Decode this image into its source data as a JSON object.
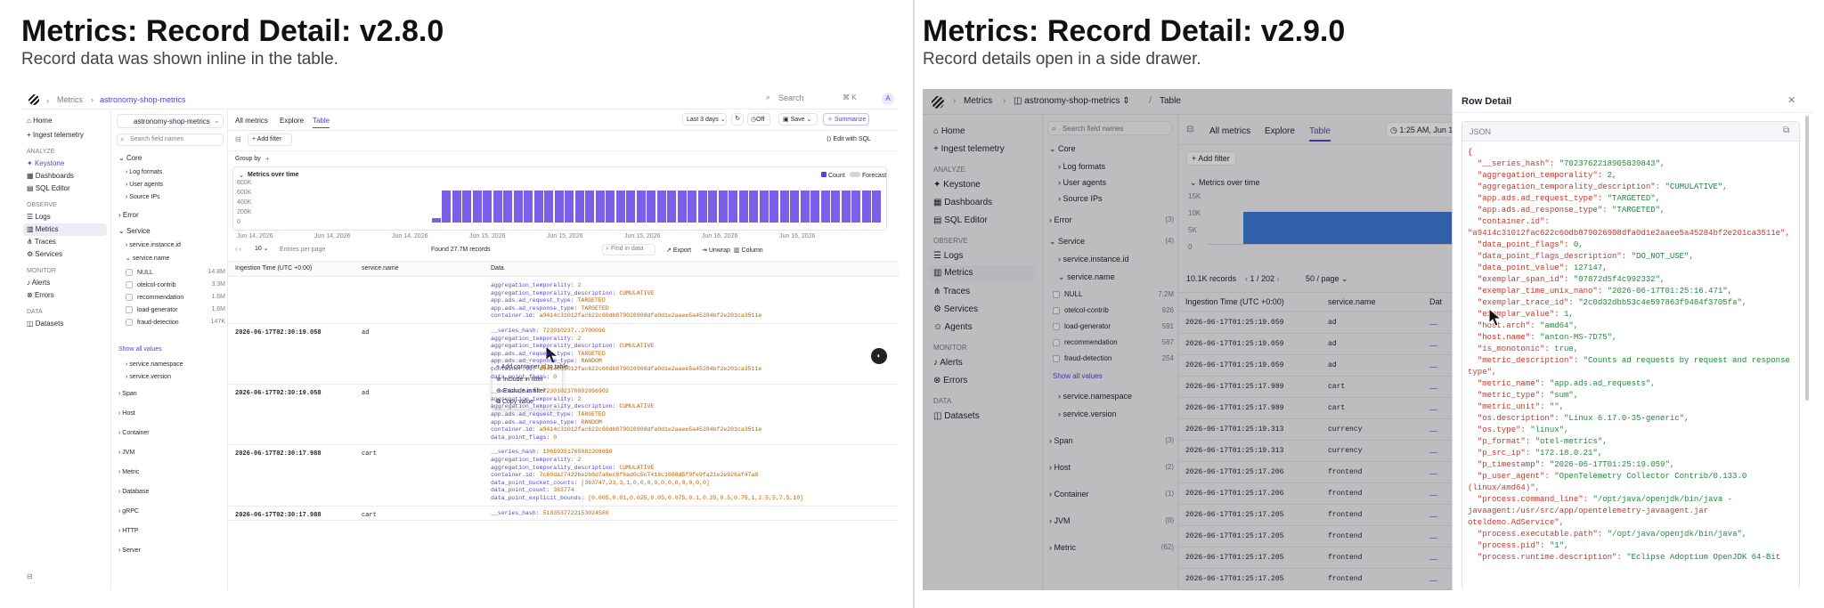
{
  "left": {
    "title": "Metrics: Record Detail: v2.8.0",
    "subtitle": "Record data was shown inline in the table.",
    "breadcrumb": [
      "Metrics",
      "astronomy-shop-metrics"
    ],
    "search": {
      "label": "Search",
      "shortcut": "⌘ K"
    },
    "avatar": "A",
    "nav": {
      "top": [
        "Home",
        "Ingest telemetry"
      ],
      "analyze_h": "ANALYZE",
      "analyze": [
        "Keystone",
        "Dashboards",
        "SQL Editor"
      ],
      "observe_h": "OBSERVE",
      "observe": [
        "Logs",
        "Metrics",
        "Traces",
        "Services"
      ],
      "monitor_h": "MONITOR",
      "monitor": [
        "Alerts",
        "Errors"
      ],
      "data_h": "DATA",
      "data": [
        "Datasets"
      ]
    },
    "dataset": "astronomy-shop-metrics",
    "field_search": "Search field names",
    "tabs": [
      "All metrics",
      "Explore",
      "Table"
    ],
    "toolbar": {
      "range": "Last 3 days",
      "off": "Off",
      "save": "Save",
      "summarize": "Summarize",
      "add_filter": "Add filter",
      "edit_sql": "Edit with SQL",
      "group_by": "Group by"
    },
    "fields": {
      "core": "Core",
      "core_items": [
        "Log formats",
        "User agents",
        "Source IPs"
      ],
      "error": "Error",
      "service": "Service",
      "service_items": [
        "service.instance.id",
        "service.name"
      ],
      "values": [
        {
          "name": "NULL",
          "count": "14.8M"
        },
        {
          "name": "otelcol-contrib",
          "count": "3.3M"
        },
        {
          "name": "recommendation",
          "count": "1.6M"
        },
        {
          "name": "load-generator",
          "count": "1.6M"
        },
        {
          "name": "fraud-detection",
          "count": "147K"
        }
      ],
      "show_all": "Show all values",
      "more": [
        "service.namespace",
        "service.version"
      ],
      "groups": [
        "Span",
        "Host",
        "Container",
        "JVM",
        "Metric",
        "Database",
        "gRPC",
        "HTTP",
        "Server"
      ]
    },
    "chart": {
      "title": "Metrics over time",
      "legend_count": "Count",
      "legend_forecast": "Forecast",
      "yticks": [
        "800K",
        "600K",
        "400K",
        "200K",
        "0"
      ],
      "xticks": [
        "Jun 14, 2026",
        "Jun 14, 2026",
        "Jun 14, 2026",
        "Jun 15, 2026",
        "Jun 15, 2026",
        "Jun 15, 2026",
        "Jun 16, 2026",
        "Jun 16, 2026"
      ]
    },
    "chart_data": {
      "type": "bar",
      "series": [
        {
          "name": "Count",
          "values": [
            100000,
            650000,
            650000,
            650000,
            650000,
            650000,
            650000,
            650000,
            650000,
            650000,
            650000,
            650000,
            650000,
            650000,
            650000,
            650000,
            650000,
            650000,
            650000,
            650000,
            650000,
            650000,
            650000,
            650000,
            650000,
            650000,
            650000,
            650000,
            650000,
            650000,
            650000,
            650000,
            650000,
            650000,
            650000,
            650000,
            650000,
            650000,
            650000,
            650000,
            650000,
            650000,
            650000,
            650000
          ]
        }
      ],
      "ylim": [
        0,
        800000
      ]
    },
    "pager": {
      "size": "10",
      "entries": "Entries per page",
      "found": "Found 27.7M records",
      "find": "Find in data",
      "export": "Export",
      "unwrap": "Unwrap",
      "column": "Column"
    },
    "cols": [
      "Ingestion Time (UTC +0:00)",
      "service.name",
      "Data"
    ],
    "rows": [
      {
        "time": "",
        "svc": "",
        "lines": [
          [
            "aggregation_temporality: ",
            "2"
          ],
          [
            "aggregation_temporality_description: ",
            "CUMULATIVE"
          ],
          [
            "app.ads.ad_request_type: ",
            "TARGETED"
          ],
          [
            "app.ads.ad_response_type: ",
            "TARGETED"
          ],
          [
            "container.id: ",
            "a9414c31012fac622c60db879026908dfa0d1e2aaee5a45284bf2e201ca3511e"
          ]
        ]
      },
      {
        "time": "2026-06-17T02:30:19.058",
        "svc": "ad",
        "lines": [
          [
            "__series_hash: ",
            "723010237..2700096"
          ],
          [
            "aggregation_temporality: ",
            "2"
          ],
          [
            "aggregation_temporality_description: ",
            "CUMULATIVE"
          ],
          [
            "app.ads.ad_request_type: ",
            "TARGETED"
          ],
          [
            "app.ads.ad_response_type: ",
            "RANDOM"
          ],
          [
            "container.id: ",
            "a9414c31012fac622c60db879026908dfa0d1e2aaee5a45284bf2e201ca3511e"
          ],
          [
            "data_point_flags: ",
            "0"
          ]
        ]
      },
      {
        "time": "2026-06-17T02:30:19.058",
        "svc": "ad",
        "lines": [
          [
            "__series_hash: ",
            "7230102370002096902"
          ],
          [
            "aggregation_temporality: ",
            "2"
          ],
          [
            "aggregation_temporality_description: ",
            "CUMULATIVE"
          ],
          [
            "app.ads.ad_request_type: ",
            "TARGETED"
          ],
          [
            "app.ads.ad_response_type: ",
            "RANDOM"
          ],
          [
            "container.id: ",
            "a9414c31012fac622c60db879026908dfa0d1e2aaee5a45284bf2e201ca3511e"
          ],
          [
            "data_point_flags: ",
            "0"
          ]
        ]
      },
      {
        "time": "2026-06-17T02:30:17.988",
        "svc": "cart",
        "lines": [
          [
            "__series_hash: ",
            "10659351765082208650"
          ],
          [
            "aggregation_temporality: ",
            "2"
          ],
          [
            "aggregation_temporality_description: ",
            "CUMULATIVE"
          ],
          [
            "container.id: ",
            "7c60da27422be2b8d7a8ec8f8ad0c5c7418c1668d5f0fe9fa21e2e926af47a8"
          ],
          [
            "data_point_bucket_counts: ",
            "[363747,23,3,1,0,0,0,0,0,0,0,0,0,0,0]"
          ],
          [
            "data_point_count: ",
            "363774"
          ],
          [
            "data_point_explicit_bounds: ",
            "[0.005,0.01,0.025,0.05,0.075,0.1,0.25,0.5,0.75,1,2.5,5,7.5,10]"
          ]
        ]
      },
      {
        "time": "2026-06-17T02:30:17.988",
        "svc": "cart",
        "lines": [
          [
            "__series_hash: ",
            "5183537722153024580"
          ]
        ]
      }
    ],
    "menu": [
      "Add container.id to table",
      "Include in filter",
      "Exclude in filter",
      "Copy value"
    ]
  },
  "right": {
    "title": "Metrics: Record Detail: v2.9.0",
    "subtitle": "Record details open in a side drawer.",
    "breadcrumb": [
      "Metrics",
      "astronomy-shop-metrics",
      "Table"
    ],
    "nav": {
      "top": [
        "Home",
        "Ingest telemetry"
      ],
      "analyze_h": "ANALYZE",
      "analyze": [
        "Keystone",
        "Dashboards",
        "SQL Editor"
      ],
      "observe_h": "OBSERVE",
      "observe": [
        "Logs",
        "Metrics",
        "Traces",
        "Services",
        "Agents"
      ],
      "monitor_h": "MONITOR",
      "monitor": [
        "Alerts",
        "Errors"
      ],
      "data_h": "DATA",
      "data": [
        "Datasets"
      ]
    },
    "field_search": "Search field names",
    "tabs": [
      "All metrics",
      "Explore",
      "Table"
    ],
    "time": "1:25 AM, Jun 1",
    "add_filter": "Add filter",
    "fields": {
      "core": "Core",
      "core_items": [
        "Log formats",
        "User agents",
        "Source IPs"
      ],
      "error": "Error",
      "error_n": "(3)",
      "service": "Service",
      "service_n": "(4)",
      "service_items": [
        "service.instance.id",
        "service.name"
      ],
      "values": [
        {
          "name": "NULL",
          "count": "7.2M"
        },
        {
          "name": "otelcol-contrib",
          "count": "926"
        },
        {
          "name": "load-generator",
          "count": "591"
        },
        {
          "name": "recommendation",
          "count": "587"
        },
        {
          "name": "fraud-detection",
          "count": "254"
        }
      ],
      "show_all": "Show all values",
      "more": [
        "service.namespace",
        "service.version"
      ],
      "groups": [
        {
          "name": "Span",
          "n": "(3)"
        },
        {
          "name": "Host",
          "n": "(2)"
        },
        {
          "name": "Container",
          "n": "(1)"
        },
        {
          "name": "JVM",
          "n": "(8)"
        },
        {
          "name": "Metric",
          "n": "(62)"
        }
      ]
    },
    "chart": {
      "title": "Metrics over time",
      "yticks": [
        "15K",
        "10K",
        "5K",
        "0"
      ]
    },
    "pager": {
      "records": "10.1K records",
      "page": "1 / 202",
      "size": "50 / page"
    },
    "cols": [
      "Ingestion Time (UTC +0:00)",
      "service.name",
      "Dat"
    ],
    "rows": [
      [
        "2026-06-17T01:25:19.059",
        "ad"
      ],
      [
        "2026-06-17T01:25:19.059",
        "ad"
      ],
      [
        "2026-06-17T01:25:19.059",
        "ad"
      ],
      [
        "2026-06-17T01:25:17.989",
        "cart"
      ],
      [
        "2026-06-17T01:25:17.989",
        "cart"
      ],
      [
        "2026-06-17T01:25:19.313",
        "currency"
      ],
      [
        "2026-06-17T01:25:19.313",
        "currency"
      ],
      [
        "2026-06-17T01:25:17.206",
        "frontend"
      ],
      [
        "2026-06-17T01:25:17.206",
        "frontend"
      ],
      [
        "2026-06-17T01:25:17.205",
        "frontend"
      ],
      [
        "2026-06-17T01:25:17.205",
        "frontend"
      ],
      [
        "2026-06-17T01:25:17.205",
        "frontend"
      ],
      [
        "2026-06-17T01:25:17.205",
        "frontend"
      ]
    ],
    "drawer": {
      "title": "Row Detail",
      "tab": "JSON",
      "lines": [
        [
          "{",
          ""
        ],
        [
          "  \"__series_hash\": ",
          "\"7023762218905039843\","
        ],
        [
          "  \"aggregation_temporality\": ",
          "2,"
        ],
        [
          "  \"aggregation_temporality_description\": ",
          "\"CUMULATIVE\","
        ],
        [
          "  \"app.ads.ad_request_type\": ",
          "\"TARGETED\","
        ],
        [
          "  \"app.ads.ad_response_type\": ",
          "\"TARGETED\","
        ],
        [
          "  \"container.id\": ",
          ""
        ],
        [
          "\"a9414c31012fac622c60db879026908dfa0d1e2aaee5a45284bf2e201ca3511e\",",
          ""
        ],
        [
          "  \"data_point_flags\": ",
          "0,"
        ],
        [
          "  \"data_point_flags_description\": ",
          "\"DO_NOT_USE\","
        ],
        [
          "  \"data_point_value\": ",
          "127147,"
        ],
        [
          "  \"exemplar_span_id\": ",
          "\"07872d5f4c992332\","
        ],
        [
          "  \"exemplar_time_unix_nano\": ",
          "\"2026-06-17T01:25:16.471\","
        ],
        [
          "  \"exemplar_trace_id\": ",
          "\"2c0d32dbb53c4e597863f9484f3705fa\","
        ],
        [
          "  \"exemplar_value\": ",
          "1,"
        ],
        [
          "  \"host.arch\": ",
          "\"amd64\","
        ],
        [
          "  \"host.name\": ",
          "\"anton-MS-7D75\","
        ],
        [
          "  \"is_monotonic\": ",
          "true,"
        ],
        [
          "  \"metric_description\": ",
          "\"Counts ad requests by request and response"
        ],
        [
          "type\",",
          ""
        ],
        [
          "  \"metric_name\": ",
          "\"app.ads.ad_requests\","
        ],
        [
          "  \"metric_type\": ",
          "\"sum\","
        ],
        [
          "  \"metric_unit\": ",
          "\"\","
        ],
        [
          "  \"os.description\": ",
          "\"Linux 6.17.0-35-generic\","
        ],
        [
          "  \"os.type\": ",
          "\"linux\","
        ],
        [
          "  \"p_format\": ",
          "\"otel-metrics\","
        ],
        [
          "  \"p_src_ip\": ",
          "\"172.18.0.21\","
        ],
        [
          "  \"p_timestamp\": ",
          "\"2026-06-17T01:25:19.059\","
        ],
        [
          "  \"p_user_agent\": ",
          "\"OpenTelemetry Collector Contrib/0.133.0"
        ],
        [
          "(linux/amd64)\",",
          ""
        ],
        [
          "  \"process.command_line\": ",
          "\"/opt/java/openjdk/bin/java -"
        ],
        [
          "javaagent:/usr/src/app/opentelemetry-javaagent.jar",
          ""
        ],
        [
          "oteldemo.AdService\",",
          ""
        ],
        [
          "  \"process.executable.path\": ",
          "\"/opt/java/openjdk/bin/java\","
        ],
        [
          "  \"process.pid\": ",
          "\"1\","
        ],
        [
          "  \"process.runtime.description\": ",
          "\"Eclipse Adoptium OpenJDK 64-Bit"
        ]
      ]
    }
  }
}
